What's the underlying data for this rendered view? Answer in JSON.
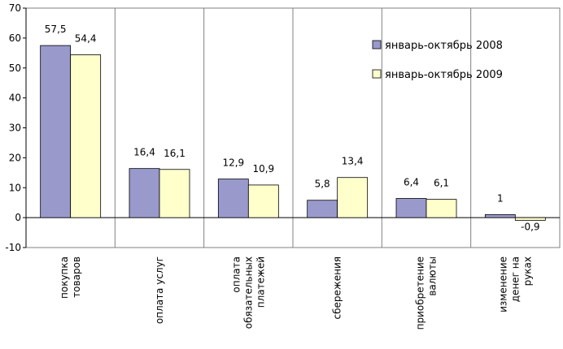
{
  "chart_data": {
    "type": "bar",
    "title": "",
    "xlabel": "",
    "ylabel": "",
    "ylim": [
      -10,
      70
    ],
    "yticks": [
      -10,
      0,
      10,
      20,
      30,
      40,
      50,
      60,
      70
    ],
    "grid": false,
    "legend_position": "top-right",
    "categories": [
      [
        "покупка",
        "товаров"
      ],
      [
        "оплата услуг"
      ],
      [
        "оплата",
        "обязательных",
        "платежей"
      ],
      [
        "сбережения"
      ],
      [
        "приобретение",
        "валюты"
      ],
      [
        "изменение",
        "денег на",
        "руках"
      ]
    ],
    "series": [
      {
        "name": "январь-октябрь 2008",
        "color": "#9999cc",
        "values": [
          57.5,
          16.4,
          12.9,
          5.8,
          6.4,
          1
        ],
        "labels": [
          "57,5",
          "16,4",
          "12,9",
          "5,8",
          "6,4",
          "1"
        ]
      },
      {
        "name": "январь-октябрь 2009",
        "color": "#ffffcc",
        "values": [
          54.4,
          16.1,
          10.9,
          13.4,
          6.1,
          -0.9
        ],
        "labels": [
          "54,4",
          "16,1",
          "10,9",
          "13,4",
          "6,1",
          "-0,9"
        ]
      }
    ]
  }
}
